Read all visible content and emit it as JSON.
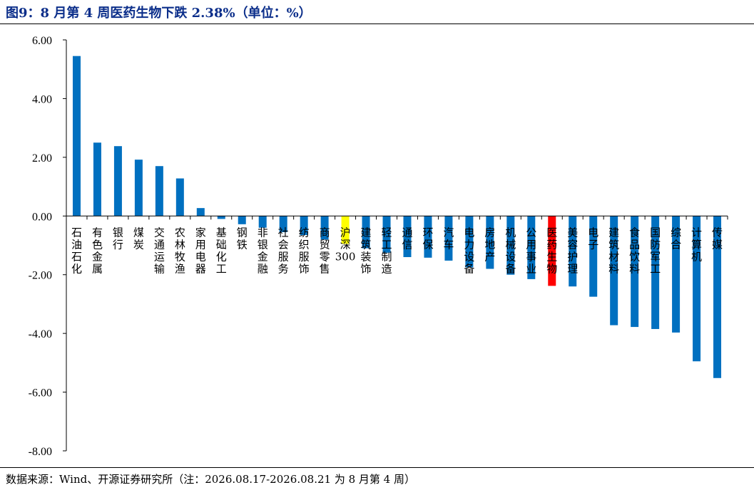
{
  "title": "图9：8 月第 4 周医药生物下跌 2.38%（单位：%）",
  "source": "数据来源：Wind、开源证券研究所（注：2026.08.17-2026.08.21 为 8 月第 4 周）",
  "colors": {
    "default": "#0070c0",
    "highlight_sector": "#ff0000",
    "benchmark": "#ffff00",
    "title": "#0b2e8a"
  },
  "chart_data": {
    "type": "bar",
    "title": "",
    "xlabel": "",
    "ylabel": "",
    "ylim": [
      -8,
      6
    ],
    "yticks": [
      "6.00",
      "4.00",
      "2.00",
      "0.00",
      "-2.00",
      "-4.00",
      "-6.00",
      "-8.00"
    ],
    "grid": false,
    "legend": "none",
    "categories": [
      "石油石化",
      "有色金属",
      "银行",
      "煤炭",
      "交通运输",
      "农林牧渔",
      "家用电器",
      "基础化工",
      "钢铁",
      "非银金融",
      "社会服务",
      "纺织服饰",
      "商贸零售",
      "沪深300",
      "建筑装饰",
      "轻工制造",
      "通信",
      "环保",
      "汽车",
      "电力设备",
      "房地产",
      "机械设备",
      "公用事业",
      "医药生物",
      "美容护理",
      "电子",
      "建筑材料",
      "食品饮料",
      "国防军工",
      "综合",
      "计算机",
      "传媒"
    ],
    "values": [
      5.45,
      2.5,
      2.38,
      1.92,
      1.7,
      1.28,
      0.27,
      -0.1,
      -0.28,
      -0.4,
      -0.55,
      -0.65,
      -0.8,
      -0.95,
      -1.1,
      -1.25,
      -1.4,
      -1.42,
      -1.52,
      -1.75,
      -1.8,
      -2.0,
      -2.15,
      -2.38,
      -2.4,
      -2.75,
      -3.72,
      -3.78,
      -3.85,
      -3.97,
      -4.95,
      -5.52
    ],
    "highlight": {
      "医药生物": "highlight_sector",
      "沪深300": "benchmark"
    }
  }
}
